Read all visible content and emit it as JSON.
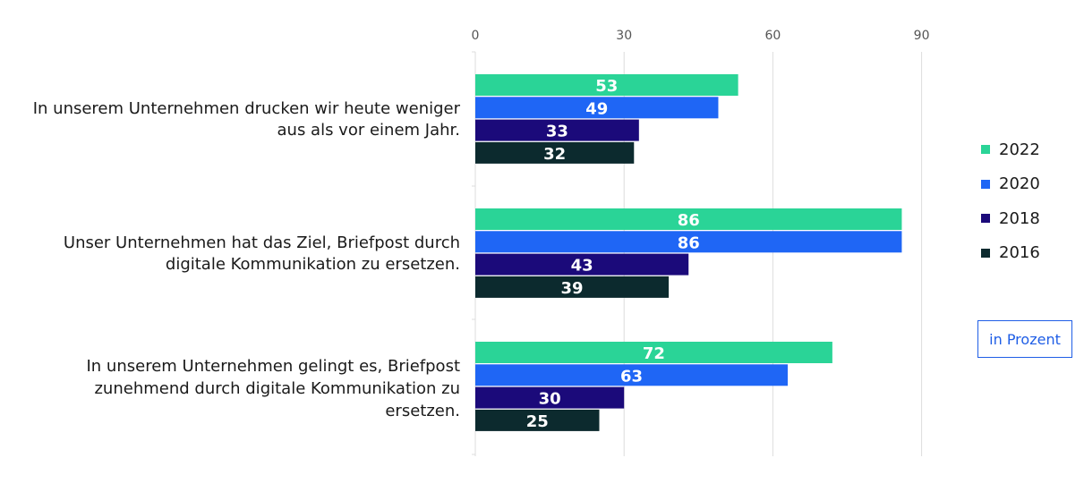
{
  "chart_data": {
    "type": "bar",
    "orientation": "horizontal",
    "categories": [
      [
        "In unserem Unternehmen drucken wir heute weniger",
        "aus als vor einem Jahr."
      ],
      [
        "Unser Unternehmen hat das Ziel, Briefpost durch",
        "digitale Kommunikation zu ersetzen."
      ],
      [
        "In unserem Unternehmen gelingt es, Briefpost",
        "zunehmend durch digitale Kommunikation zu",
        "ersetzen."
      ]
    ],
    "series": [
      {
        "name": "2022",
        "color": "#2ad497",
        "values": [
          53,
          86,
          72
        ]
      },
      {
        "name": "2020",
        "color": "#1f66f5",
        "values": [
          49,
          86,
          63
        ]
      },
      {
        "name": "2018",
        "color": "#1b0a7a",
        "values": [
          33,
          43,
          30
        ]
      },
      {
        "name": "2016",
        "color": "#0c2a2e",
        "values": [
          32,
          39,
          25
        ]
      }
    ],
    "x_ticks": [
      "0",
      "30",
      "60",
      "90"
    ],
    "xlim": [
      0,
      120
    ],
    "grid": true,
    "legend_position": "right",
    "unit_label": "in Prozent"
  }
}
